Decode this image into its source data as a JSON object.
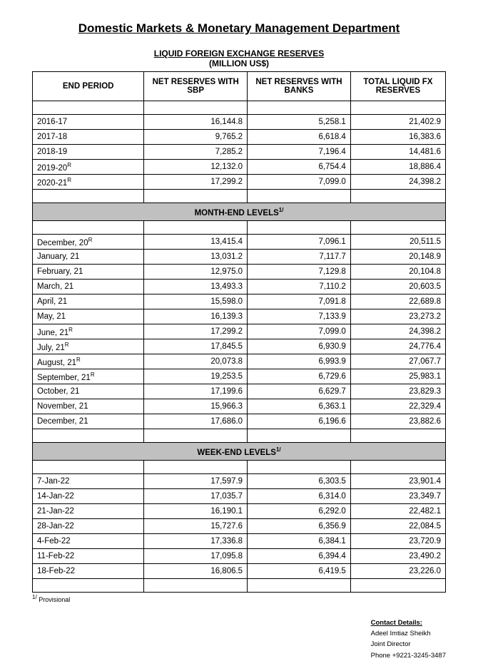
{
  "title": "Domestic Markets & Monetary Management Department",
  "subtitle": "LIQUID FOREIGN EXCHANGE RESERVES",
  "unit": "(MILLION US$)",
  "headers": {
    "period": "END PERIOD",
    "sbp": "NET RESERVES WITH SBP",
    "banks": "NET RESERVES WITH BANKS",
    "total": "TOTAL LIQUID FX RESERVES"
  },
  "yearly": [
    {
      "period": "2016-17",
      "sup": "",
      "sbp": "16,144.8",
      "banks": "5,258.1",
      "total": "21,402.9"
    },
    {
      "period": "2017-18",
      "sup": "",
      "sbp": "9,765.2",
      "banks": "6,618.4",
      "total": "16,383.6"
    },
    {
      "period": "2018-19",
      "sup": "",
      "sbp": "7,285.2",
      "banks": "7,196.4",
      "total": "14,481.6"
    },
    {
      "period": "2019-20",
      "sup": "R",
      "sbp": "12,132.0",
      "banks": "6,754.4",
      "total": "18,886.4"
    },
    {
      "period": "2020-21",
      "sup": "R",
      "sbp": "17,299.2",
      "banks": "7,099.0",
      "total": "24,398.2"
    }
  ],
  "section_month": "MONTH-END LEVELS",
  "monthly": [
    {
      "period": "December, 20",
      "sup": "R",
      "sbp": "13,415.4",
      "banks": "7,096.1",
      "total": "20,511.5"
    },
    {
      "period": "January, 21",
      "sup": "",
      "sbp": "13,031.2",
      "banks": "7,117.7",
      "total": "20,148.9"
    },
    {
      "period": "February, 21",
      "sup": "",
      "sbp": "12,975.0",
      "banks": "7,129.8",
      "total": "20,104.8"
    },
    {
      "period": "March, 21",
      "sup": "",
      "sbp": "13,493.3",
      "banks": "7,110.2",
      "total": "20,603.5"
    },
    {
      "period": "April, 21",
      "sup": "",
      "sbp": "15,598.0",
      "banks": "7,091.8",
      "total": "22,689.8"
    },
    {
      "period": "May, 21",
      "sup": "",
      "sbp": "16,139.3",
      "banks": "7,133.9",
      "total": "23,273.2"
    },
    {
      "period": "June, 21",
      "sup": "R",
      "sbp": "17,299.2",
      "banks": "7,099.0",
      "total": "24,398.2"
    },
    {
      "period": "July, 21",
      "sup": "R",
      "sbp": "17,845.5",
      "banks": "6,930.9",
      "total": "24,776.4"
    },
    {
      "period": "August, 21",
      "sup": "R",
      "sbp": "20,073.8",
      "banks": "6,993.9",
      "total": "27,067.7"
    },
    {
      "period": "September, 21",
      "sup": "R",
      "sbp": "19,253.5",
      "banks": "6,729.6",
      "total": "25,983.1"
    },
    {
      "period": "October, 21",
      "sup": "",
      "sbp": "17,199.6",
      "banks": "6,629.7",
      "total": "23,829.3"
    },
    {
      "period": "November, 21",
      "sup": "",
      "sbp": "15,966.3",
      "banks": "6,363.1",
      "total": "22,329.4"
    },
    {
      "period": "December, 21",
      "sup": "",
      "sbp": "17,686.0",
      "banks": "6,196.6",
      "total": "23,882.6"
    }
  ],
  "section_week": "WEEK-END LEVELS",
  "weekly": [
    {
      "period": "7-Jan-22",
      "sup": "",
      "sbp": "17,597.9",
      "banks": "6,303.5",
      "total": "23,901.4"
    },
    {
      "period": "14-Jan-22",
      "sup": "",
      "sbp": "17,035.7",
      "banks": "6,314.0",
      "total": "23,349.7"
    },
    {
      "period": "21-Jan-22",
      "sup": "",
      "sbp": "16,190.1",
      "banks": "6,292.0",
      "total": "22,482.1"
    },
    {
      "period": "28-Jan-22",
      "sup": "",
      "sbp": "15,727.6",
      "banks": "6,356.9",
      "total": "22,084.5"
    },
    {
      "period": "4-Feb-22",
      "sup": "",
      "sbp": "17,336.8",
      "banks": "6,384.1",
      "total": "23,720.9"
    },
    {
      "period": "11-Feb-22",
      "sup": "",
      "sbp": "17,095.8",
      "banks": "6,394.4",
      "total": "23,490.2"
    },
    {
      "period": "18-Feb-22",
      "sup": "",
      "sbp": "16,806.5",
      "banks": "6,419.5",
      "total": "23,226.0"
    }
  ],
  "footnote_marker": "1/",
  "footnote_text": "Provisional",
  "contact": {
    "heading": "Contact Details:",
    "name": "Adeel Imtiaz Sheikh",
    "title": "Joint Director",
    "phone": "Phone +9221-3245-3487"
  }
}
